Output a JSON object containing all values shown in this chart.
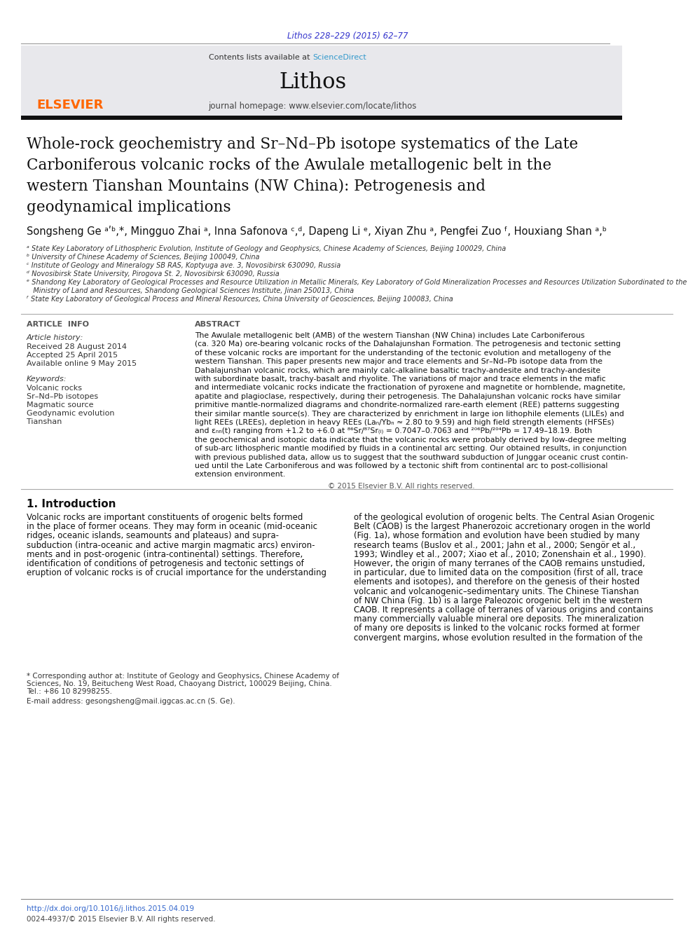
{
  "doi_text": "Lithos 228–229 (2015) 62–77",
  "doi_color": "#3333cc",
  "contents_text": "Contents lists available at ",
  "sciencedirect_text": "ScienceDirect",
  "sciencedirect_color": "#3399cc",
  "journal_name": "Lithos",
  "journal_homepage": "journal homepage: www.elsevier.com/locate/lithos",
  "elsevier_color": "#ff6600",
  "header_bg": "#e8e8ec",
  "title_lines": [
    "Whole-rock geochemistry and Sr–Nd–Pb isotope systematics of the Late",
    "Carboniferous volcanic rocks of the Awulale metallogenic belt in the",
    "western Tianshan Mountains (NW China): Petrogenesis and",
    "geodynamical implications"
  ],
  "authors": "Songsheng Ge ᵃʹᵇ,*, Mingguo Zhai ᵃ, Inna Safonova ᶜ,ᵈ, Dapeng Li ᵉ, Xiyan Zhu ᵃ, Pengfei Zuo ᶠ, Houxiang Shan ᵃ,ᵇ",
  "affiliations": [
    "ᵃ State Key Laboratory of Lithospheric Evolution, Institute of Geology and Geophysics, Chinese Academy of Sciences, Beijing 100029, China",
    "ᵇ University of Chinese Academy of Sciences, Beijing 100049, China",
    "ᶜ Institute of Geology and Mineralogy SB RAS, Koptyuga ave. 3, Novosibirsk 630090, Russia",
    "ᵈ Novosibirsk State University, Pirogova St. 2, Novosibirsk 630090, Russia",
    "ᵉ Shandong Key Laboratory of Geological Processes and Resource Utilization in Metallic Minerals, Key Laboratory of Gold Mineralization Processes and Resources Utilization Subordinated to the",
    "   Ministry of Land and Resources, Shandong Geological Sciences Institute, Jinan 250013, China",
    "ᶠ State Key Laboratory of Geological Process and Mineral Resources, China University of Geosciences, Beijing 100083, China"
  ],
  "article_info_title": "ARTICLE  INFO",
  "article_history_label": "Article history:",
  "received": "Received 28 August 2014",
  "accepted": "Accepted 25 April 2015",
  "available": "Available online 9 May 2015",
  "keywords_label": "Keywords:",
  "keywords": [
    "Volcanic rocks",
    "Sr–Nd–Pb isotopes",
    "Magmatic source",
    "Geodynamic evolution",
    "Tianshan"
  ],
  "abstract_title": "ABSTRACT",
  "abstract_lines": [
    "The Awulale metallogenic belt (AMB) of the western Tianshan (NW China) includes Late Carboniferous",
    "(ca. 320 Ma) ore-bearing volcanic rocks of the Dahalajunshan Formation. The petrogenesis and tectonic setting",
    "of these volcanic rocks are important for the understanding of the tectonic evolution and metallogeny of the",
    "western Tianshan. This paper presents new major and trace elements and Sr–Nd–Pb isotope data from the",
    "Dahalajunshan volcanic rocks, which are mainly calc-alkaline basaltic trachy-andesite and trachy-andesite",
    "with subordinate basalt, trachy-basalt and rhyolite. The variations of major and trace elements in the mafic",
    "and intermediate volcanic rocks indicate the fractionation of pyroxene and magnetite or hornblende, magnetite,",
    "apatite and plagioclase, respectively, during their petrogenesis. The Dahalajunshan volcanic rocks have similar",
    "primitive mantle-normalized diagrams and chondrite-normalized rare-earth element (REE) patterns suggesting",
    "their similar mantle source(s). They are characterized by enrichment in large ion lithophile elements (LILEs) and",
    "light REEs (LREEs), depletion in heavy REEs (Laₙ/Ybₙ ≈ 2.80 to 9.59) and high field strength elements (HFSEs)",
    "and εₙₙ(t) ranging from +1.2 to +6.0 at ⁸⁶Sr/⁸⁷Sr₍ᵢ₎ = 0.7047–0.7063 and ²⁰⁶Pb/²⁰⁴Pb = 17.49–18.19. Both",
    "the geochemical and isotopic data indicate that the volcanic rocks were probably derived by low-degree melting",
    "of sub-arc lithospheric mantle modified by fluids in a continental arc setting. Our obtained results, in conjunction",
    "with previous published data, allow us to suggest that the southward subduction of Junggar oceanic crust contin-",
    "ued until the Late Carboniferous and was followed by a tectonic shift from continental arc to post-collisional",
    "extension environment."
  ],
  "copyright": "© 2015 Elsevier B.V. All rights reserved.",
  "intro_title": "1. Introduction",
  "intro_left_lines": [
    "Volcanic rocks are important constituents of orogenic belts formed",
    "in the place of former oceans. They may form in oceanic (mid-oceanic",
    "ridges, oceanic islands, seamounts and plateaus) and supra-",
    "subduction (intra-oceanic and active margin magmatic arcs) environ-",
    "ments and in post-orogenic (intra-continental) settings. Therefore,",
    "identification of conditions of petrogenesis and tectonic settings of",
    "eruption of volcanic rocks is of crucial importance for the understanding"
  ],
  "intro_right_lines": [
    "of the geological evolution of orogenic belts. The Central Asian Orogenic",
    "Belt (CAOB) is the largest Phanerozoic accretionary orogen in the world",
    "(Fig. 1a), whose formation and evolution have been studied by many",
    "research teams (Buslov et al., 2001; Jahn et al., 2000; Sengör et al.,",
    "1993; Windley et al., 2007; Xiao et al., 2010; Zonenshain et al., 1990).",
    "However, the origin of many terranes of the CAOB remains unstudied,",
    "in particular, due to limited data on the composition (first of all, trace",
    "elements and isotopes), and therefore on the genesis of their hosted",
    "volcanic and volcanogenic–sedimentary units. The Chinese Tianshan",
    "of NW China (Fig. 1b) is a large Paleozoic orogenic belt in the western",
    "CAOB. It represents a collage of terranes of various origins and contains",
    "many commercially valuable mineral ore deposits. The mineralization",
    "of many ore deposits is linked to the volcanic rocks formed at former",
    "convergent margins, whose evolution resulted in the formation of the"
  ],
  "footnote_line1": "* Corresponding author at: Institute of Geology and Geophysics, Chinese Academy of",
  "footnote_line2": "Sciences, No. 19, Beitucheng West Road, Chaoyang District, 100029 Beijing, China.",
  "footnote_line3": "Tel.: +86 10 82998255.",
  "footnote_email": "E-mail address: gesongsheng@mail.iggcas.ac.cn (S. Ge).",
  "footnote_doi": "http://dx.doi.org/10.1016/j.lithos.2015.04.019",
  "footnote_issn": "0024-4937/© 2015 Elsevier B.V. All rights reserved.",
  "link_color": "#3366cc"
}
